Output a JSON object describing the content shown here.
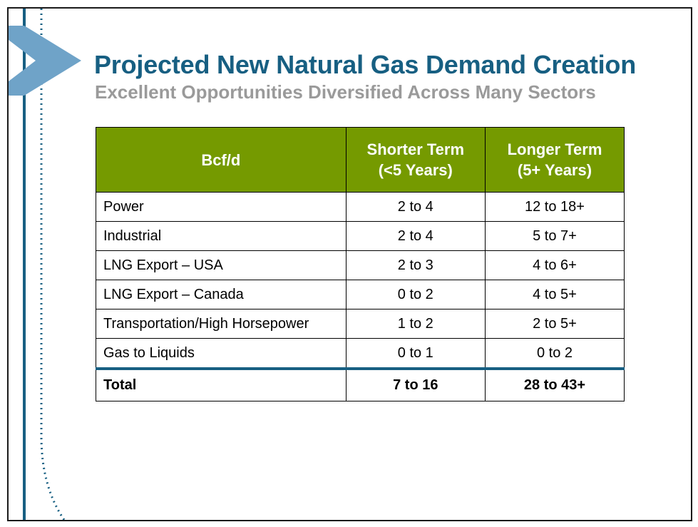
{
  "slide": {
    "title": "Projected New Natural Gas Demand Creation",
    "subtitle": "Excellent Opportunities Diversified Across Many Sectors"
  },
  "colors": {
    "title": "#175f82",
    "subtitle": "#9a9a9a",
    "header_bg": "#759a00",
    "accent_line": "#175f82",
    "chevron": "#6fa3c8"
  },
  "icons": [
    "chevron-logo-icon"
  ],
  "table": {
    "columns": [
      {
        "lines": [
          "Bcf/d"
        ]
      },
      {
        "lines": [
          "Shorter Term",
          "(<5 Years)"
        ]
      },
      {
        "lines": [
          "Longer Term",
          "(5+ Years)"
        ]
      }
    ],
    "rows": [
      {
        "sector": "Power",
        "shorter": "2 to 4",
        "longer": "12 to 18+"
      },
      {
        "sector": "Industrial",
        "shorter": "2 to 4",
        "longer": "5 to 7+"
      },
      {
        "sector": "LNG Export – USA",
        "shorter": "2 to 3",
        "longer": "4 to 6+"
      },
      {
        "sector": "LNG Export – Canada",
        "shorter": "0 to 2",
        "longer": "4 to 5+"
      },
      {
        "sector": "Transportation/High Horsepower",
        "shorter": "1 to 2",
        "longer": "2 to 5+"
      },
      {
        "sector": "Gas to Liquids",
        "shorter": "0 to 1",
        "longer": "0 to 2"
      }
    ],
    "total": {
      "label": "Total",
      "shorter": "7 to 16",
      "longer": "28 to 43+"
    }
  }
}
